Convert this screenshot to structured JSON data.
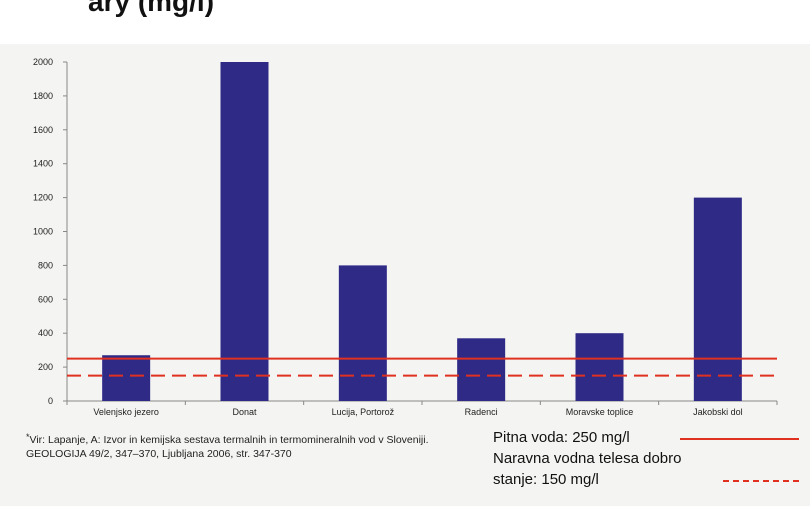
{
  "page": {
    "title_fragment": "ary (mg/l)"
  },
  "chart_data": {
    "type": "bar",
    "categories": [
      "Velenjsko jezero",
      "Donat",
      "Lucija, Portorož",
      "Radenci",
      "Moravske toplice",
      "Jakobski dol"
    ],
    "values": [
      270,
      2000,
      800,
      370,
      400,
      1200
    ],
    "yticks": [
      "0",
      "200",
      "400",
      "600",
      "800",
      "1000",
      "1200",
      "1400",
      "1600",
      "1800",
      "2000"
    ],
    "ylim": [
      0,
      2000
    ],
    "grid": false,
    "bar_color": "#2e2a86",
    "reference_lines": [
      {
        "label": "Pitna voda: 250 mg/l",
        "value": 250,
        "style": "solid",
        "color": "#e03020"
      },
      {
        "label": "Naravna vodna telesa dobro stanje: 150 mg/l",
        "value": 150,
        "style": "dashed",
        "color": "#e03020"
      }
    ]
  },
  "source_note": {
    "marker": "*",
    "text": "Vir: Lapanje, A: Izvor in kemijska sestava termalnih in termomineralnih vod v Sloveniji. GEOLOGIJA 49/2, 347–370, Ljubljana 2006, str. 347-370"
  },
  "legend": {
    "line1": "Pitna voda: 250 mg/l",
    "line2": "Naravna vodna telesa dobro",
    "line3": "stanje: 150 mg/l"
  }
}
